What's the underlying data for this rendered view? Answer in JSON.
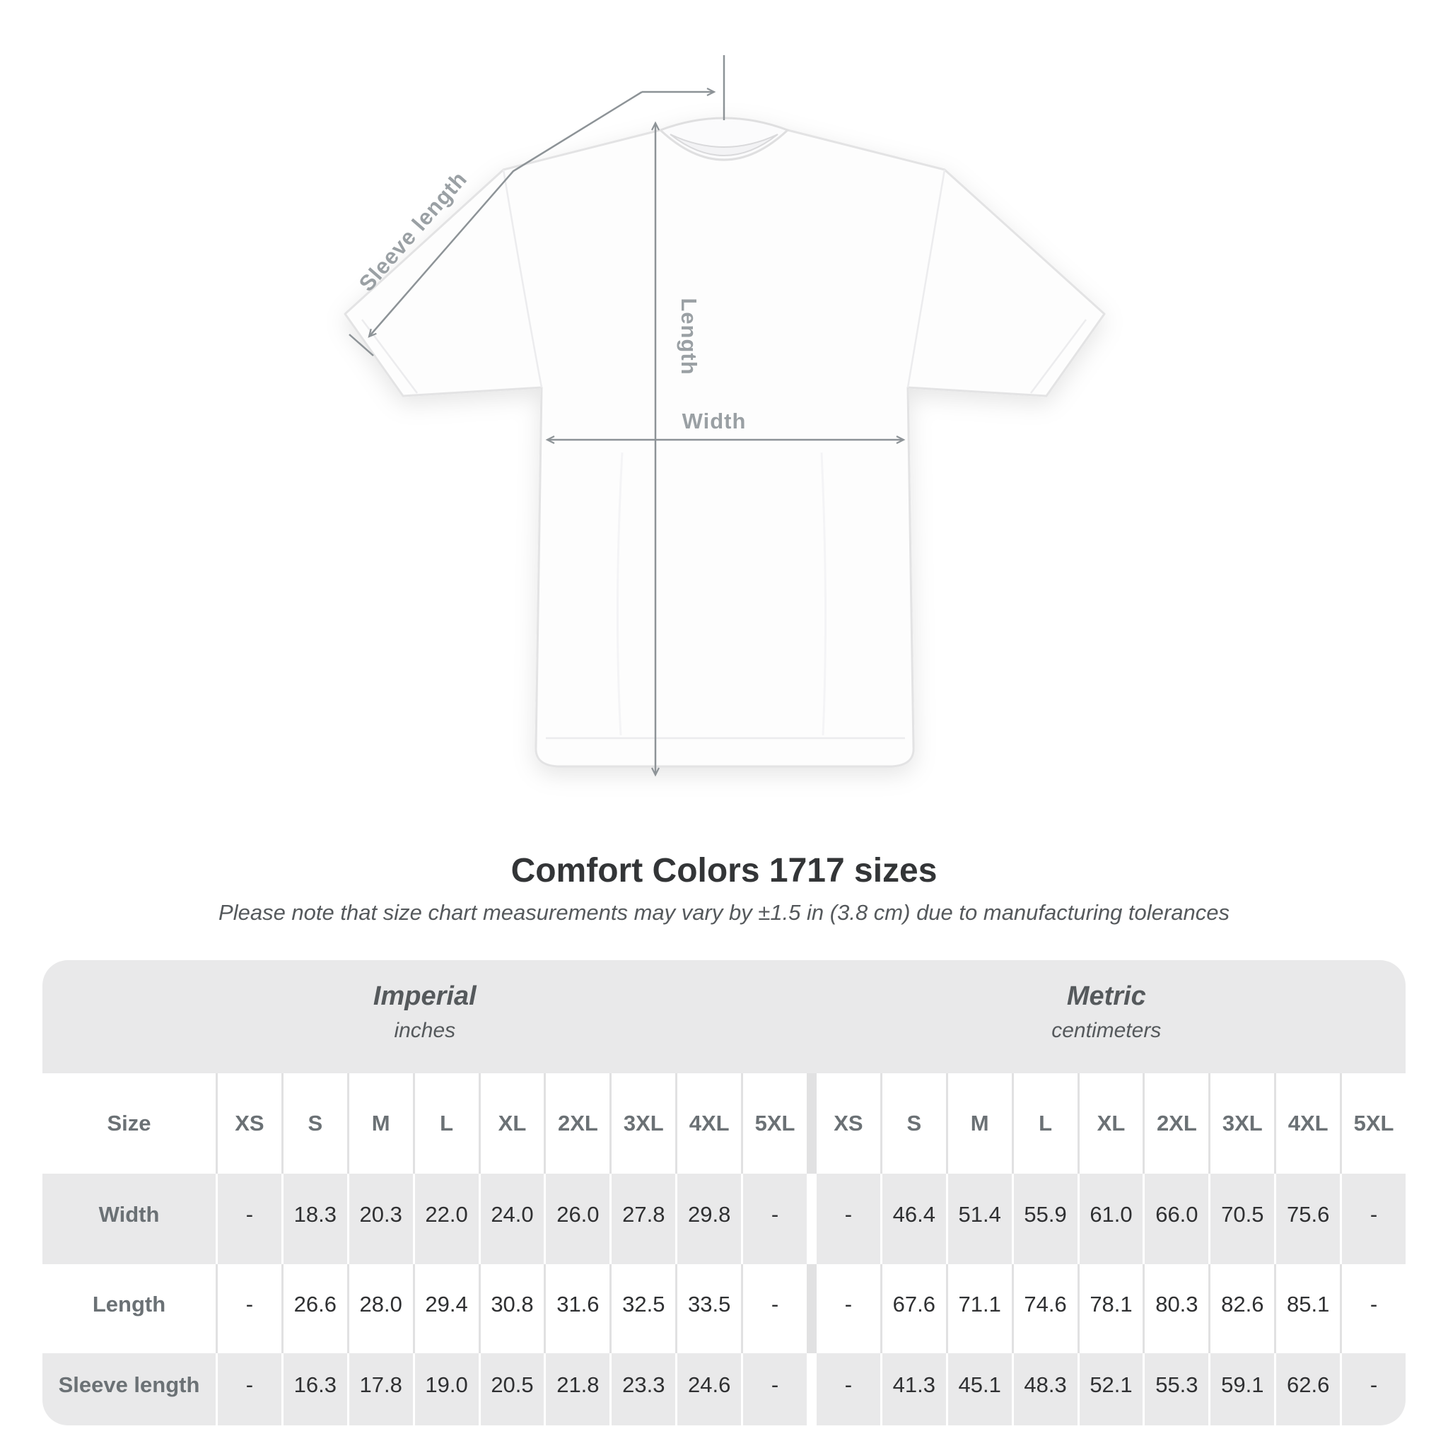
{
  "colors": {
    "page_bg": "#ffffff",
    "table_gray": "#e9e9ea",
    "separator_on_white": "#e1e1e2",
    "heading_text": "#333537",
    "muted_text": "#55595c",
    "table_label_text": "#6b7175",
    "value_text": "#2f3032",
    "diagram_line": "#8d9397",
    "diagram_label": "#9aa0a4"
  },
  "diagram": {
    "labels": {
      "sleeve_length": "Sleeve length",
      "length": "Length",
      "width": "Width"
    }
  },
  "heading": {
    "title": "Comfort Colors 1717 sizes",
    "subtitle": "Please note that size chart measurements may vary by ±1.5 in (3.8 cm) due to manufacturing tolerances"
  },
  "table": {
    "size_column_header": "Size",
    "unit_sections": [
      {
        "name": "Imperial",
        "unit": "inches"
      },
      {
        "name": "Metric",
        "unit": "centimeters"
      }
    ],
    "sizes": [
      "XS",
      "S",
      "M",
      "L",
      "XL",
      "2XL",
      "3XL",
      "4XL",
      "5XL"
    ],
    "rows": [
      {
        "label": "Width",
        "imperial": [
          "-",
          "18.3",
          "20.3",
          "22.0",
          "24.0",
          "26.0",
          "27.8",
          "29.8",
          "-"
        ],
        "metric": [
          "-",
          "46.4",
          "51.4",
          "55.9",
          "61.0",
          "66.0",
          "70.5",
          "75.6",
          "-"
        ]
      },
      {
        "label": "Length",
        "imperial": [
          "-",
          "26.6",
          "28.0",
          "29.4",
          "30.8",
          "31.6",
          "32.5",
          "33.5",
          "-"
        ],
        "metric": [
          "-",
          "67.6",
          "71.1",
          "74.6",
          "78.1",
          "80.3",
          "82.6",
          "85.1",
          "-"
        ]
      },
      {
        "label": "Sleeve length",
        "imperial": [
          "-",
          "16.3",
          "17.8",
          "19.0",
          "20.5",
          "21.8",
          "23.3",
          "24.6",
          "-"
        ],
        "metric": [
          "-",
          "41.3",
          "45.1",
          "48.3",
          "52.1",
          "55.3",
          "59.1",
          "62.6",
          "-"
        ]
      }
    ]
  },
  "chart_data": {
    "type": "table",
    "title": "Comfort Colors 1717 sizes",
    "note": "Please note that size chart measurements may vary by ±1.5 in (3.8 cm) due to manufacturing tolerances",
    "column_groups": [
      {
        "name": "Imperial",
        "unit": "inches",
        "columns": [
          "XS",
          "S",
          "M",
          "L",
          "XL",
          "2XL",
          "3XL",
          "4XL",
          "5XL"
        ]
      },
      {
        "name": "Metric",
        "unit": "centimeters",
        "columns": [
          "XS",
          "S",
          "M",
          "L",
          "XL",
          "2XL",
          "3XL",
          "4XL",
          "5XL"
        ]
      }
    ],
    "rows": [
      {
        "measurement": "Width",
        "imperial_in": [
          null,
          18.3,
          20.3,
          22.0,
          24.0,
          26.0,
          27.8,
          29.8,
          null
        ],
        "metric_cm": [
          null,
          46.4,
          51.4,
          55.9,
          61.0,
          66.0,
          70.5,
          75.6,
          null
        ]
      },
      {
        "measurement": "Length",
        "imperial_in": [
          null,
          26.6,
          28.0,
          29.4,
          30.8,
          31.6,
          32.5,
          33.5,
          null
        ],
        "metric_cm": [
          null,
          67.6,
          71.1,
          74.6,
          78.1,
          80.3,
          82.6,
          85.1,
          null
        ]
      },
      {
        "measurement": "Sleeve length",
        "imperial_in": [
          null,
          16.3,
          17.8,
          19.0,
          20.5,
          21.8,
          23.3,
          24.6,
          null
        ],
        "metric_cm": [
          null,
          41.3,
          45.1,
          48.3,
          52.1,
          55.3,
          59.1,
          62.6,
          null
        ]
      }
    ]
  }
}
